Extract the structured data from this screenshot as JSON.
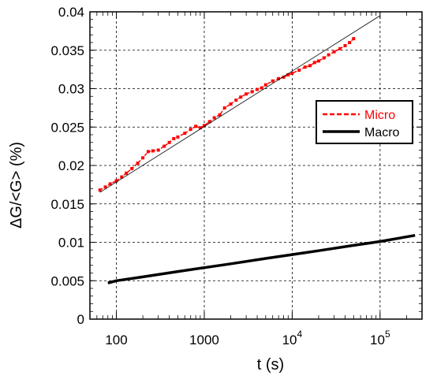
{
  "chart_data": {
    "type": "line",
    "xlabel": "t (s)",
    "ylabel": "ΔG/<G> (%)",
    "xscale": "log",
    "xlim": [
      50,
      300000
    ],
    "ylim": [
      0,
      0.04
    ],
    "grid": true,
    "legend_position": "right",
    "x_ticks": [
      {
        "value": 100,
        "base": "100",
        "exp": ""
      },
      {
        "value": 1000,
        "base": "1000",
        "exp": ""
      },
      {
        "value": 10000,
        "base": "10",
        "exp": "4"
      },
      {
        "value": 100000,
        "base": "10",
        "exp": "5"
      }
    ],
    "y_ticks": [
      {
        "value": 0,
        "label": "0"
      },
      {
        "value": 0.005,
        "label": "0.005"
      },
      {
        "value": 0.01,
        "label": "0.01"
      },
      {
        "value": 0.015,
        "label": "0.015"
      },
      {
        "value": 0.02,
        "label": "0.02"
      },
      {
        "value": 0.025,
        "label": "0.025"
      },
      {
        "value": 0.03,
        "label": "0.03"
      },
      {
        "value": 0.035,
        "label": "0.035"
      },
      {
        "value": 0.04,
        "label": "0.04"
      }
    ],
    "series": [
      {
        "name": "Micro",
        "color": "#ff0000",
        "style": "dashed-markers",
        "x": [
          65,
          75,
          85,
          100,
          115,
          130,
          150,
          175,
          200,
          230,
          260,
          300,
          350,
          400,
          450,
          500,
          600,
          700,
          800,
          900,
          1000,
          1150,
          1300,
          1500,
          1700,
          2000,
          2300,
          2600,
          3000,
          3500,
          4000,
          4500,
          5000,
          6000,
          7000,
          8000,
          9000,
          10000,
          12000,
          14000,
          16000,
          18000,
          20000,
          23000,
          26000,
          30000,
          35000,
          40000,
          45000,
          50000
        ],
        "y": [
          0.0168,
          0.0172,
          0.0176,
          0.018,
          0.0185,
          0.019,
          0.0196,
          0.0203,
          0.021,
          0.0218,
          0.0219,
          0.022,
          0.0225,
          0.023,
          0.0235,
          0.0237,
          0.0242,
          0.0247,
          0.0251,
          0.0249,
          0.0252,
          0.0257,
          0.0262,
          0.0266,
          0.0275,
          0.028,
          0.0285,
          0.0289,
          0.0293,
          0.0296,
          0.0299,
          0.0301,
          0.0305,
          0.031,
          0.0313,
          0.0315,
          0.0318,
          0.032,
          0.0324,
          0.0328,
          0.033,
          0.0334,
          0.0336,
          0.034,
          0.0344,
          0.0348,
          0.0352,
          0.0356,
          0.036,
          0.0365
        ]
      },
      {
        "name": "Macro",
        "color": "#000000",
        "style": "solid",
        "x": [
          80,
          100,
          200,
          500,
          1000,
          2000,
          5000,
          10000,
          20000,
          50000,
          100000,
          250000
        ],
        "y": [
          0.0047,
          0.005,
          0.0055,
          0.0062,
          0.0067,
          0.0072,
          0.0079,
          0.0084,
          0.0089,
          0.0096,
          0.0101,
          0.0109
        ]
      }
    ],
    "fit_line": {
      "color": "#000000",
      "x": [
        65,
        100000
      ],
      "y": [
        0.0165,
        0.0395
      ]
    }
  }
}
